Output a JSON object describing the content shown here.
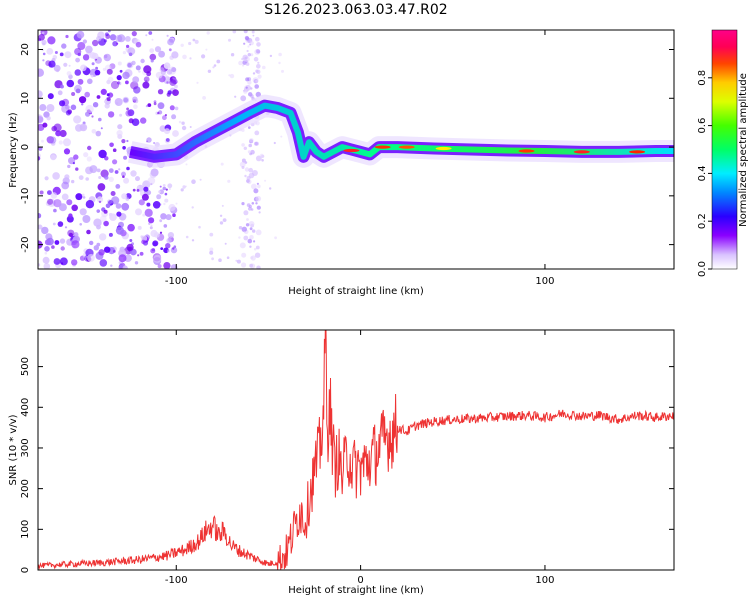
{
  "title": "S126.2023.063.03.47.R02",
  "chart_data": [
    {
      "type": "heatmap",
      "xlabel": "Height of straight line (km)",
      "ylabel": "Frequency (Hz)",
      "xlim": [
        -175,
        170
      ],
      "ylim": [
        -25,
        24
      ],
      "x_ticks": [
        -100,
        100
      ],
      "y_ticks": [
        -20,
        -10,
        0,
        10,
        20
      ],
      "colorbar": {
        "label": "Normalized spectral amplitude",
        "range": [
          0,
          1
        ],
        "ticks": [
          0.0,
          0.2,
          0.4,
          0.6,
          0.8
        ],
        "tick_labels": [
          "0.0",
          "0.2",
          "0.4",
          "0.6",
          "0.8"
        ]
      },
      "ridge": {
        "x": [
          -125,
          -112,
          -100,
          -90,
          -80,
          -70,
          -60,
          -52,
          -45,
          -38,
          -34,
          -31,
          -28,
          -24,
          -20,
          -15,
          -10,
          -5,
          0,
          5,
          10,
          20,
          40,
          60,
          80,
          100,
          120,
          140,
          160,
          170
        ],
        "y": [
          -1,
          -2,
          -1.5,
          1,
          3,
          5,
          7,
          8.5,
          8,
          7,
          3,
          -2,
          1,
          -1,
          -2,
          -1,
          0,
          -0.5,
          -1,
          -1.5,
          0,
          0,
          -0.3,
          -0.5,
          -0.7,
          -0.8,
          -1,
          -1,
          -0.8,
          -0.8
        ]
      }
    },
    {
      "type": "line",
      "xlabel": "Height of straight line (km)",
      "ylabel": "SNR (10 * v/v)",
      "xlim": [
        -175,
        170
      ],
      "ylim": [
        0,
        590
      ],
      "x_ticks": [
        -100,
        0,
        100
      ],
      "y_ticks": [
        0,
        100,
        200,
        300,
        400,
        500
      ],
      "color": "#ee3333",
      "series": [
        {
          "x": [
            -175,
            -160,
            -140,
            -120,
            -105,
            -95,
            -88,
            -84,
            -80,
            -77,
            -74,
            -70,
            -65,
            -58,
            -50,
            -45,
            -40,
            -36,
            -33,
            -30,
            -27,
            -24,
            -22,
            -20,
            -19,
            -18,
            -17,
            -16,
            -14,
            -12,
            -10,
            -7,
            -4,
            0,
            5,
            10,
            15,
            20,
            25,
            30,
            40,
            50,
            60,
            70,
            80,
            90,
            100,
            110,
            120,
            130,
            140,
            150,
            160,
            170
          ],
          "y": [
            10,
            14,
            18,
            25,
            35,
            50,
            70,
            95,
            110,
            85,
            95,
            60,
            45,
            30,
            15,
            20,
            45,
            100,
            150,
            120,
            200,
            260,
            300,
            400,
            587,
            300,
            460,
            350,
            250,
            280,
            230,
            290,
            250,
            250,
            270,
            300,
            330,
            350,
            340,
            355,
            365,
            370,
            372,
            375,
            378,
            380,
            375,
            385,
            378,
            380,
            370,
            380,
            375,
            380
          ]
        }
      ]
    }
  ]
}
